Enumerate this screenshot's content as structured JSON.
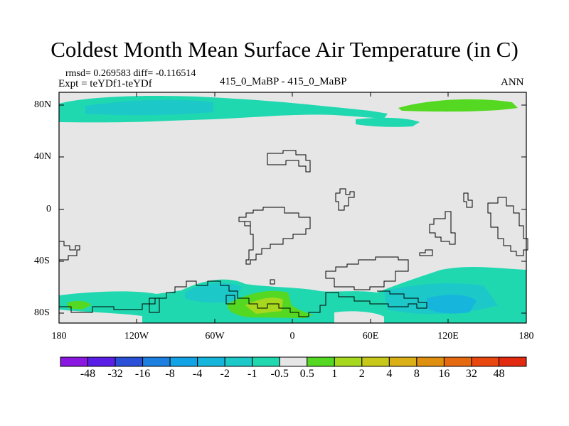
{
  "title": "Coldest Month Mean Surface Air Temperature (in C)",
  "stats": "rmsd= 0.269583 diff= -0.116514",
  "experiment": "Expt = teYDf1-teYDf",
  "cases": "415_0_MaBP - 415_0_MaBP",
  "season": "ANN",
  "map": {
    "lat_ticks": [
      "80N",
      "40N",
      "0",
      "40S",
      "80S"
    ],
    "lon_ticks": [
      "180",
      "120W",
      "60W",
      "0",
      "60E",
      "120E",
      "180"
    ]
  },
  "colorbar": {
    "labels": [
      "-48",
      "-32",
      "-16",
      "-8",
      "-4",
      "-2",
      "-1",
      "-0.5",
      "0.5",
      "1",
      "2",
      "4",
      "8",
      "16",
      "32",
      "48"
    ],
    "colors": [
      "#8a18e0",
      "#5a1fe6",
      "#2a50d8",
      "#1d7fe0",
      "#12a2e6",
      "#16b6dc",
      "#1cc8c8",
      "#20d8b0",
      "#e6e6e6",
      "#55d822",
      "#a6d81e",
      "#c8c81a",
      "#dab016",
      "#e09010",
      "#e66a10",
      "#e8480e",
      "#e22a10"
    ]
  },
  "palette": {
    "land_gray": "#e6e6e6",
    "cold_small": "#20d8b0",
    "cold_med": "#1cc8c8",
    "cold_strong": "#16b6dc",
    "warm_small": "#55d822",
    "warm_med": "#a6d81e"
  }
}
